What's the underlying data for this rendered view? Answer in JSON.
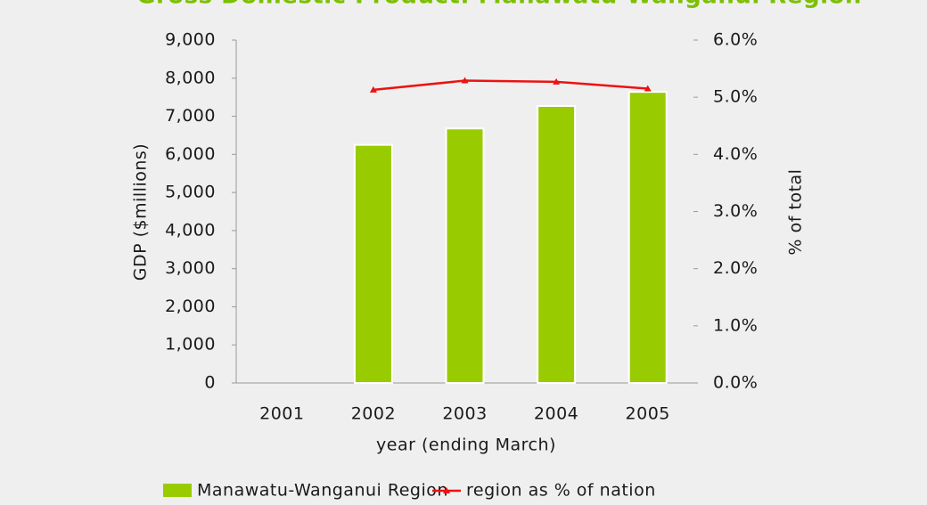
{
  "chart_data": {
    "type": "bar",
    "title": "Gross Domestic Product: Manawatu-Wanganui Region",
    "categories": [
      "2001",
      "2002",
      "2003",
      "2004",
      "2005"
    ],
    "series": [
      {
        "name": "Manawatu-Wanganui Region",
        "color": "#99cc00",
        "values": [
          null,
          6250,
          6680,
          7270,
          7640
        ]
      },
      {
        "name": "region as % of nation",
        "color": "#ee1111",
        "type": "line",
        "axis": "y2",
        "values": [
          null,
          5.13,
          5.29,
          5.27,
          5.15
        ]
      }
    ],
    "xlabel": "year (ending March)",
    "ylabel": "GDP ($millions)",
    "y2label": "% of total",
    "ylim": [
      0,
      9000
    ],
    "yticks": [
      0,
      {
        "value": 1000,
        "label": "1,000"
      },
      {
        "value": 2000,
        "label": "2,000"
      },
      {
        "value": 3000,
        "label": "3,000"
      },
      {
        "value": 4000,
        "label": "4,000"
      },
      {
        "value": 5000,
        "label": "5,000"
      },
      {
        "value": 6000,
        "label": "6,000"
      },
      {
        "value": 7000,
        "label": "7,000"
      },
      {
        "value": 8000,
        "label": "8,000"
      },
      {
        "value": 9000,
        "label": "9,000"
      }
    ],
    "y2lim": [
      0,
      6
    ],
    "y2ticks": [
      {
        "value": 0,
        "label": "0.0%"
      },
      {
        "value": 1,
        "label": "1.0%"
      },
      {
        "value": 2,
        "label": "2.0%"
      },
      {
        "value": 3,
        "label": "3.0%"
      },
      {
        "value": 4,
        "label": "4.0%"
      },
      {
        "value": 5,
        "label": "5.0%"
      },
      {
        "value": 6,
        "label": "6.0%"
      }
    ],
    "legend": "bottom"
  }
}
